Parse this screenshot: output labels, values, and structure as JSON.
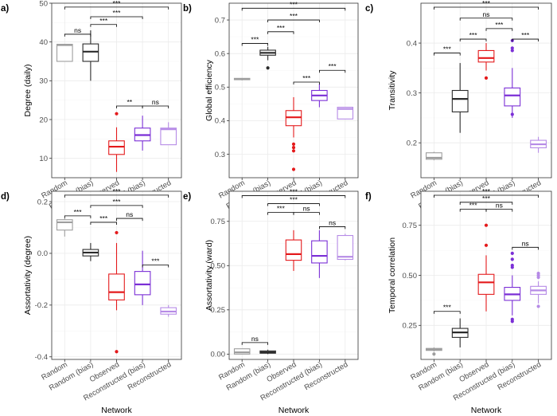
{
  "figure": {
    "x_axis_title": "Network"
  },
  "categories": [
    "Random",
    "Random (bias)",
    "Observed",
    "Reconstructed (bias)",
    "Reconstructed"
  ],
  "category_colors": [
    "#9e9e9e",
    "#2b2b2b",
    "#e41a1c",
    "#7b2fd6",
    "#b68be6"
  ],
  "chart_data": [
    {
      "type": "box",
      "tag": "a)",
      "ylabel": "Degree (daily)",
      "ylim": [
        5,
        50
      ],
      "yticks": [
        10,
        20,
        30,
        40,
        50
      ],
      "boxes": [
        {
          "q1": 35,
          "median": 39.2,
          "q3": 39.4,
          "lo": 35,
          "hi": 39.5,
          "outliers": []
        },
        {
          "q1": 35,
          "median": 37.5,
          "q3": 39.5,
          "lo": 30,
          "hi": 43,
          "outliers": []
        },
        {
          "q1": 11,
          "median": 13,
          "q3": 14.5,
          "lo": 6.5,
          "hi": 18,
          "outliers": [
            21.5
          ]
        },
        {
          "q1": 14.5,
          "median": 16,
          "q3": 17.8,
          "lo": 12,
          "hi": 21,
          "outliers": []
        },
        {
          "q1": 13.5,
          "median": 17.5,
          "q3": 17.8,
          "lo": 13.5,
          "hi": 19.3,
          "outliers": []
        }
      ],
      "brackets": [
        {
          "from": 0,
          "to": 4,
          "y": 49,
          "label": "***"
        },
        {
          "from": 1,
          "to": 3,
          "y": 46.5,
          "label": "***"
        },
        {
          "from": 0,
          "to": 1,
          "y": 42,
          "label": "ns"
        },
        {
          "from": 1,
          "to": 2,
          "y": 44.5,
          "label": "***"
        },
        {
          "from": 2,
          "to": 3,
          "y": 23.5,
          "label": "**"
        },
        {
          "from": 3,
          "to": 4,
          "y": 23.5,
          "label": "ns"
        }
      ]
    },
    {
      "type": "box",
      "tag": "b)",
      "ylabel": "Global efficiency",
      "ylim": [
        0.23,
        0.75
      ],
      "yticks": [
        0.3,
        0.4,
        0.5,
        0.6,
        0.7
      ],
      "boxes": [
        {
          "q1": 0.522,
          "median": 0.524,
          "q3": 0.526,
          "lo": 0.52,
          "hi": 0.527,
          "outliers": []
        },
        {
          "q1": 0.595,
          "median": 0.602,
          "q3": 0.61,
          "lo": 0.58,
          "hi": 0.62,
          "outliers": [
            0.557
          ]
        },
        {
          "q1": 0.385,
          "median": 0.41,
          "q3": 0.43,
          "lo": 0.35,
          "hi": 0.47,
          "outliers": [
            0.33,
            0.32,
            0.31,
            0.255
          ]
        },
        {
          "q1": 0.46,
          "median": 0.475,
          "q3": 0.49,
          "lo": 0.44,
          "hi": 0.51,
          "outliers": []
        },
        {
          "q1": 0.405,
          "median": 0.435,
          "q3": 0.44,
          "lo": 0.405,
          "hi": 0.44,
          "outliers": []
        }
      ],
      "brackets": [
        {
          "from": 0,
          "to": 4,
          "y": 0.735,
          "label": "***"
        },
        {
          "from": 1,
          "to": 3,
          "y": 0.7,
          "label": "***"
        },
        {
          "from": 1,
          "to": 2,
          "y": 0.665,
          "label": "***"
        },
        {
          "from": 0,
          "to": 1,
          "y": 0.63,
          "label": "***"
        },
        {
          "from": 2,
          "to": 3,
          "y": 0.515,
          "label": "***"
        },
        {
          "from": 3,
          "to": 4,
          "y": 0.55,
          "label": "***"
        }
      ]
    },
    {
      "type": "box",
      "tag": "c)",
      "ylabel": "Transitivity",
      "ylim": [
        0.13,
        0.48
      ],
      "yticks": [
        0.2,
        0.3,
        0.4
      ],
      "boxes": [
        {
          "q1": 0.167,
          "median": 0.17,
          "q3": 0.18,
          "lo": 0.165,
          "hi": 0.182,
          "outliers": []
        },
        {
          "q1": 0.262,
          "median": 0.288,
          "q3": 0.305,
          "lo": 0.22,
          "hi": 0.36,
          "outliers": []
        },
        {
          "q1": 0.362,
          "median": 0.37,
          "q3": 0.385,
          "lo": 0.345,
          "hi": 0.4,
          "outliers": [
            0.33
          ]
        },
        {
          "q1": 0.274,
          "median": 0.295,
          "q3": 0.31,
          "lo": 0.25,
          "hi": 0.35,
          "outliers": [
            0.405,
            0.39,
            0.385,
            0.257
          ]
        },
        {
          "q1": 0.19,
          "median": 0.197,
          "q3": 0.205,
          "lo": 0.18,
          "hi": 0.212,
          "outliers": []
        }
      ],
      "brackets": [
        {
          "from": 0,
          "to": 4,
          "y": 0.472,
          "label": "***"
        },
        {
          "from": 1,
          "to": 3,
          "y": 0.45,
          "label": "ns"
        },
        {
          "from": 2,
          "to": 3,
          "y": 0.429,
          "label": "***"
        },
        {
          "from": 1,
          "to": 2,
          "y": 0.408,
          "label": "***"
        },
        {
          "from": 3,
          "to": 4,
          "y": 0.408,
          "label": "***"
        },
        {
          "from": 0,
          "to": 1,
          "y": 0.38,
          "label": "***"
        }
      ]
    },
    {
      "type": "box",
      "tag": "d)",
      "ylabel": "Assortativity (degree)",
      "ylim": [
        -0.41,
        0.24
      ],
      "yticks": [
        -0.4,
        -0.2,
        0.0,
        0.2
      ],
      "boxes": [
        {
          "q1": 0.09,
          "median": 0.12,
          "q3": 0.13,
          "lo": 0.065,
          "hi": 0.135,
          "outliers": []
        },
        {
          "q1": -0.01,
          "median": 0.003,
          "q3": 0.015,
          "lo": -0.03,
          "hi": 0.04,
          "outliers": []
        },
        {
          "q1": -0.18,
          "median": -0.15,
          "q3": -0.08,
          "lo": -0.22,
          "hi": 0.04,
          "outliers": [
            0.08,
            -0.38
          ]
        },
        {
          "q1": -0.16,
          "median": -0.12,
          "q3": -0.07,
          "lo": -0.2,
          "hi": 0.01,
          "outliers": []
        },
        {
          "q1": -0.235,
          "median": -0.225,
          "q3": -0.21,
          "lo": -0.245,
          "hi": -0.2,
          "outliers": []
        }
      ],
      "brackets": [
        {
          "from": 0,
          "to": 4,
          "y": 0.225,
          "label": "***"
        },
        {
          "from": 1,
          "to": 3,
          "y": 0.185,
          "label": "***"
        },
        {
          "from": 0,
          "to": 1,
          "y": 0.145,
          "label": "***"
        },
        {
          "from": 1,
          "to": 2,
          "y": 0.12,
          "label": "***"
        },
        {
          "from": 2,
          "to": 3,
          "y": 0.135,
          "label": "ns"
        },
        {
          "from": 3,
          "to": 4,
          "y": -0.045,
          "label": "***"
        }
      ]
    },
    {
      "type": "box",
      "tag": "e)",
      "ylabel": "Assortativity (ward)",
      "ylim": [
        -0.03,
        0.92
      ],
      "yticks": [
        0.0,
        0.25,
        0.5,
        0.75
      ],
      "boxes": [
        {
          "q1": 0.0,
          "median": 0.01,
          "q3": 0.03,
          "lo": 0.0,
          "hi": 0.03,
          "outliers": []
        },
        {
          "q1": 0.005,
          "median": 0.01,
          "q3": 0.018,
          "lo": 0.0,
          "hi": 0.025,
          "outliers": []
        },
        {
          "q1": 0.53,
          "median": 0.565,
          "q3": 0.645,
          "lo": 0.47,
          "hi": 0.7,
          "outliers": []
        },
        {
          "q1": 0.515,
          "median": 0.555,
          "q3": 0.64,
          "lo": 0.43,
          "hi": 0.7,
          "outliers": []
        },
        {
          "q1": 0.535,
          "median": 0.55,
          "q3": 0.67,
          "lo": 0.53,
          "hi": 0.68,
          "outliers": []
        }
      ],
      "brackets": [
        {
          "from": 0,
          "to": 4,
          "y": 0.895,
          "label": "***"
        },
        {
          "from": 1,
          "to": 3,
          "y": 0.85,
          "label": "***"
        },
        {
          "from": 1,
          "to": 2,
          "y": 0.8,
          "label": "***"
        },
        {
          "from": 2,
          "to": 3,
          "y": 0.8,
          "label": "ns"
        },
        {
          "from": 3,
          "to": 4,
          "y": 0.72,
          "label": "ns"
        },
        {
          "from": 0,
          "to": 1,
          "y": 0.065,
          "label": "ns"
        }
      ]
    },
    {
      "type": "box",
      "tag": "f)",
      "ylabel": "Temporal correlation",
      "ylim": [
        0.08,
        0.92
      ],
      "yticks": [
        0.25,
        0.5,
        0.75
      ],
      "boxes": [
        {
          "q1": 0.125,
          "median": 0.13,
          "q3": 0.135,
          "lo": 0.12,
          "hi": 0.14,
          "outliers": [
            0.107
          ]
        },
        {
          "q1": 0.19,
          "median": 0.215,
          "q3": 0.235,
          "lo": 0.14,
          "hi": 0.285,
          "outliers": []
        },
        {
          "q1": 0.405,
          "median": 0.465,
          "q3": 0.505,
          "lo": 0.32,
          "hi": 0.6,
          "outliers": [
            0.75,
            0.65
          ]
        },
        {
          "q1": 0.375,
          "median": 0.405,
          "q3": 0.44,
          "lo": 0.3,
          "hi": 0.5,
          "outliers": [
            0.61,
            0.58,
            0.55,
            0.54,
            0.28,
            0.27
          ]
        },
        {
          "q1": 0.405,
          "median": 0.425,
          "q3": 0.445,
          "lo": 0.36,
          "hi": 0.47,
          "outliers": [
            0.51,
            0.5,
            0.49,
            0.345
          ]
        }
      ],
      "brackets": [
        {
          "from": 0,
          "to": 4,
          "y": 0.9,
          "label": "***"
        },
        {
          "from": 1,
          "to": 3,
          "y": 0.865,
          "label": "***"
        },
        {
          "from": 1,
          "to": 2,
          "y": 0.83,
          "label": "***"
        },
        {
          "from": 2,
          "to": 3,
          "y": 0.83,
          "label": "ns"
        },
        {
          "from": 3,
          "to": 4,
          "y": 0.64,
          "label": "ns"
        },
        {
          "from": 0,
          "to": 1,
          "y": 0.32,
          "label": "***"
        }
      ]
    }
  ]
}
